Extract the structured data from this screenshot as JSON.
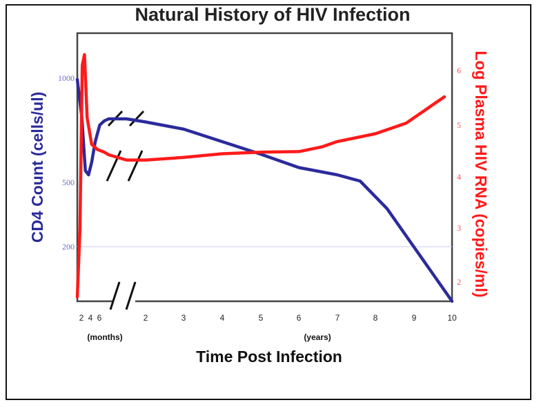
{
  "chart_data": {
    "type": "line",
    "title": "Natural History of HIV Infection",
    "xlabel": "Time Post Infection",
    "x_ticks_months": [
      "2",
      "4",
      "6"
    ],
    "x_ticks_years": [
      "2",
      "3",
      "4",
      "5",
      "6",
      "7",
      "8",
      "9",
      "10"
    ],
    "x_unit_months": "(months)",
    "x_unit_years": "(years)",
    "ylabel_left": "CD4 Count (cells/ul)",
    "ylabel_right": "Log Plasma HIV RNA (copies/ml)",
    "yticks_left": [
      "1000",
      "500",
      "200"
    ],
    "yticks_right": [
      "2",
      "3",
      "4",
      "5",
      "6"
    ],
    "colors": {
      "cd4": "#2b2b9c",
      "rna": "#ff1a1a",
      "guide": "#c9c9f0"
    },
    "axis_break": true,
    "series": [
      {
        "name": "CD4 Count (cells/ul)",
        "axis": "left",
        "values": [
          {
            "t": 0.0,
            "y": 1000
          },
          {
            "t": 1.0,
            "y": 820
          },
          {
            "t": 1.8,
            "y": 560
          },
          {
            "t": 2.5,
            "y": 540
          },
          {
            "t": 3.2,
            "y": 600
          },
          {
            "t": 4.0,
            "y": 700
          },
          {
            "t": 5.0,
            "y": 780
          },
          {
            "t": 6.0,
            "y": 800
          },
          {
            "t": 7.0,
            "y": 810
          },
          {
            "t": 1.5,
            "y": 810,
            "unit": "years"
          },
          {
            "t": 2.0,
            "y": 795,
            "unit": "years"
          },
          {
            "t": 3.0,
            "y": 760,
            "unit": "years"
          },
          {
            "t": 4.0,
            "y": 700,
            "unit": "years"
          },
          {
            "t": 5.0,
            "y": 640,
            "unit": "years"
          },
          {
            "t": 6.0,
            "y": 575,
            "unit": "years"
          },
          {
            "t": 7.0,
            "y": 540,
            "unit": "years"
          },
          {
            "t": 7.6,
            "y": 510,
            "unit": "years"
          },
          {
            "t": 8.3,
            "y": 380,
            "unit": "years"
          },
          {
            "t": 9.0,
            "y": 200,
            "unit": "years"
          },
          {
            "t": 9.5,
            "y": 100,
            "unit": "years"
          },
          {
            "t": 10.0,
            "y": 0,
            "unit": "years"
          }
        ]
      },
      {
        "name": "Log Plasma HIV RNA (copies/ml)",
        "axis": "right",
        "values": [
          {
            "t": 0.0,
            "y": 1.7
          },
          {
            "t": 0.6,
            "y": 3.0
          },
          {
            "t": 1.1,
            "y": 6.1
          },
          {
            "t": 1.6,
            "y": 6.3
          },
          {
            "t": 2.2,
            "y": 5.1
          },
          {
            "t": 3.2,
            "y": 4.6
          },
          {
            "t": 4.5,
            "y": 4.5
          },
          {
            "t": 6.0,
            "y": 4.45
          },
          {
            "t": 7.0,
            "y": 4.4
          },
          {
            "t": 1.5,
            "y": 4.3,
            "unit": "years"
          },
          {
            "t": 2.0,
            "y": 4.3,
            "unit": "years"
          },
          {
            "t": 3.0,
            "y": 4.35,
            "unit": "years"
          },
          {
            "t": 4.0,
            "y": 4.42,
            "unit": "years"
          },
          {
            "t": 5.0,
            "y": 4.45,
            "unit": "years"
          },
          {
            "t": 6.0,
            "y": 4.46,
            "unit": "years"
          },
          {
            "t": 6.6,
            "y": 4.55,
            "unit": "years"
          },
          {
            "t": 7.0,
            "y": 4.65,
            "unit": "years"
          },
          {
            "t": 8.0,
            "y": 4.8,
            "unit": "years"
          },
          {
            "t": 8.8,
            "y": 5.0,
            "unit": "years"
          },
          {
            "t": 9.4,
            "y": 5.3,
            "unit": "years"
          },
          {
            "t": 9.8,
            "y": 5.5,
            "unit": "years"
          }
        ]
      }
    ]
  }
}
